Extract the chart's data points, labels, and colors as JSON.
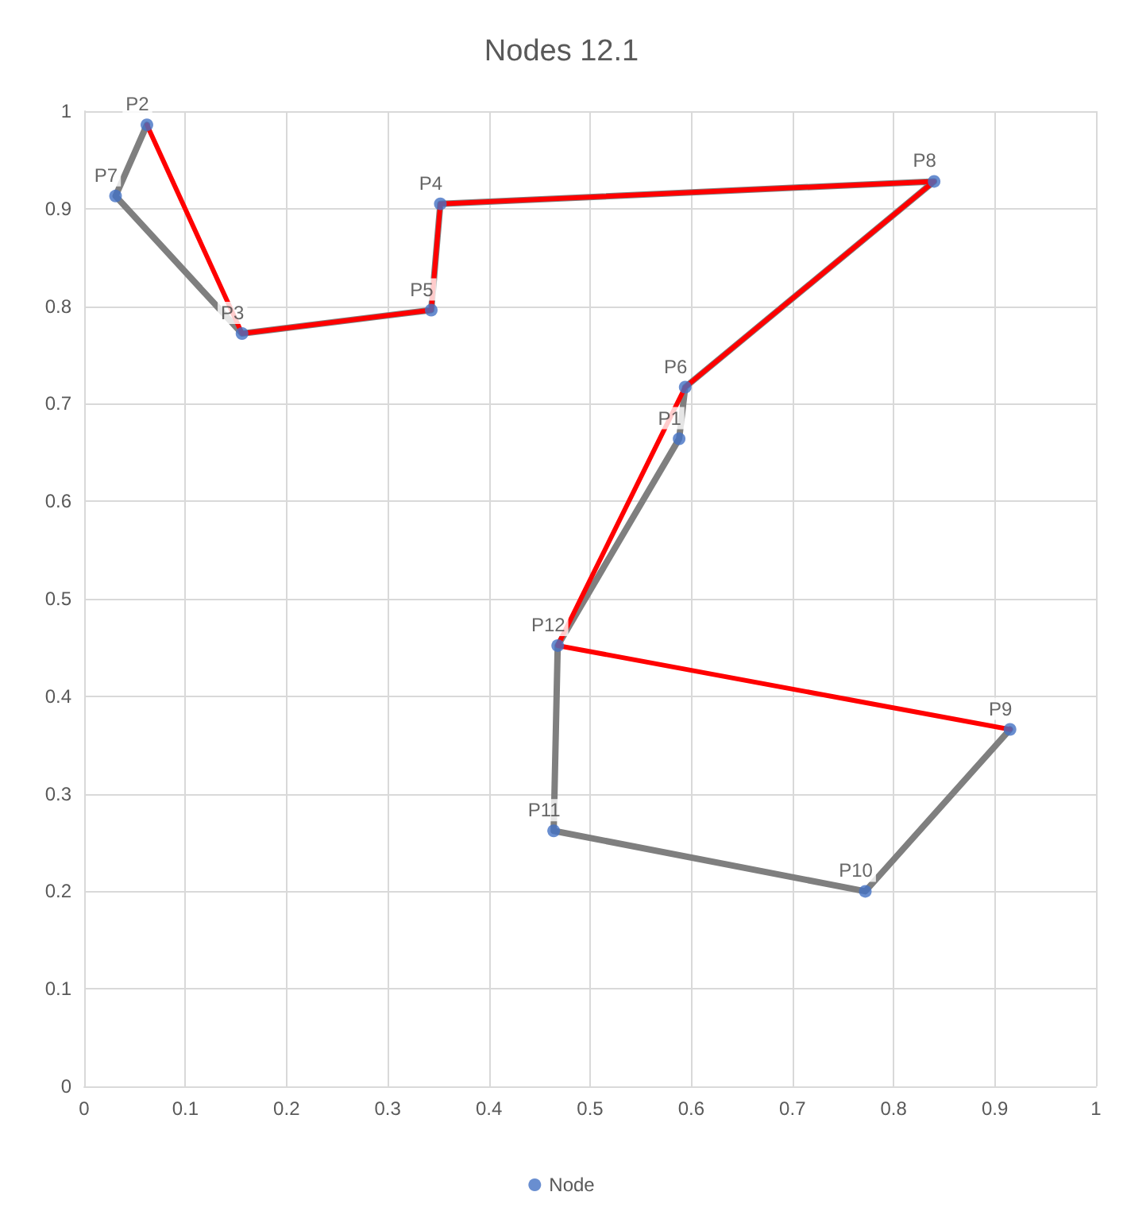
{
  "chart_data": {
    "type": "scatter",
    "title": "Nodes 12.1",
    "series": [
      {
        "type": "line",
        "color": "#7f7f7f",
        "marker": "none",
        "x": [
          0.062,
          0.031,
          0.156,
          0.343,
          0.352,
          0.84,
          0.594,
          0.588,
          0.468,
          0.464,
          0.772,
          0.915
        ],
        "values": [
          0.986,
          0.913,
          0.772,
          0.796,
          0.905,
          0.928,
          0.717,
          0.664,
          0.452,
          0.262,
          0.2,
          0.366
        ]
      },
      {
        "type": "line",
        "color": "#ff0000",
        "marker": "none",
        "x": [
          0.062,
          0.156,
          0.343,
          0.352,
          0.84,
          0.594,
          0.468,
          0.915
        ],
        "values": [
          0.986,
          0.772,
          0.796,
          0.905,
          0.928,
          0.717,
          0.452,
          0.366
        ]
      },
      {
        "type": "scatter",
        "name": "Node",
        "color": "#4472c4",
        "marker": "circle",
        "x": [
          0.062,
          0.031,
          0.156,
          0.352,
          0.343,
          0.594,
          0.588,
          0.84,
          0.915,
          0.772,
          0.464,
          0.468
        ],
        "values": [
          0.986,
          0.913,
          0.772,
          0.905,
          0.796,
          0.717,
          0.664,
          0.928,
          0.366,
          0.2,
          0.262,
          0.452
        ]
      }
    ],
    "annotations": [
      {
        "text": "P2",
        "x": 0.062,
        "y": 0.986
      },
      {
        "text": "P7",
        "x": 0.031,
        "y": 0.913
      },
      {
        "text": "P3",
        "x": 0.156,
        "y": 0.772
      },
      {
        "text": "P4",
        "x": 0.352,
        "y": 0.905
      },
      {
        "text": "P5",
        "x": 0.343,
        "y": 0.796
      },
      {
        "text": "P6",
        "x": 0.594,
        "y": 0.717
      },
      {
        "text": "P1",
        "x": 0.588,
        "y": 0.664
      },
      {
        "text": "P8",
        "x": 0.84,
        "y": 0.928
      },
      {
        "text": "P9",
        "x": 0.915,
        "y": 0.366
      },
      {
        "text": "P10",
        "x": 0.772,
        "y": 0.2
      },
      {
        "text": "P11",
        "x": 0.464,
        "y": 0.262
      },
      {
        "text": "P12",
        "x": 0.468,
        "y": 0.452
      }
    ],
    "xlim": [
      0,
      1
    ],
    "xticks": [
      0,
      0.1,
      0.2,
      0.3,
      0.4,
      0.5,
      0.6,
      0.7,
      0.8,
      0.9,
      1
    ],
    "ylim": [
      0,
      1
    ],
    "yticks": [
      0,
      0.1,
      0.2,
      0.3,
      0.4,
      0.5,
      0.6,
      0.7,
      0.8,
      0.9,
      1
    ],
    "grid": true,
    "legend": "bottom"
  }
}
